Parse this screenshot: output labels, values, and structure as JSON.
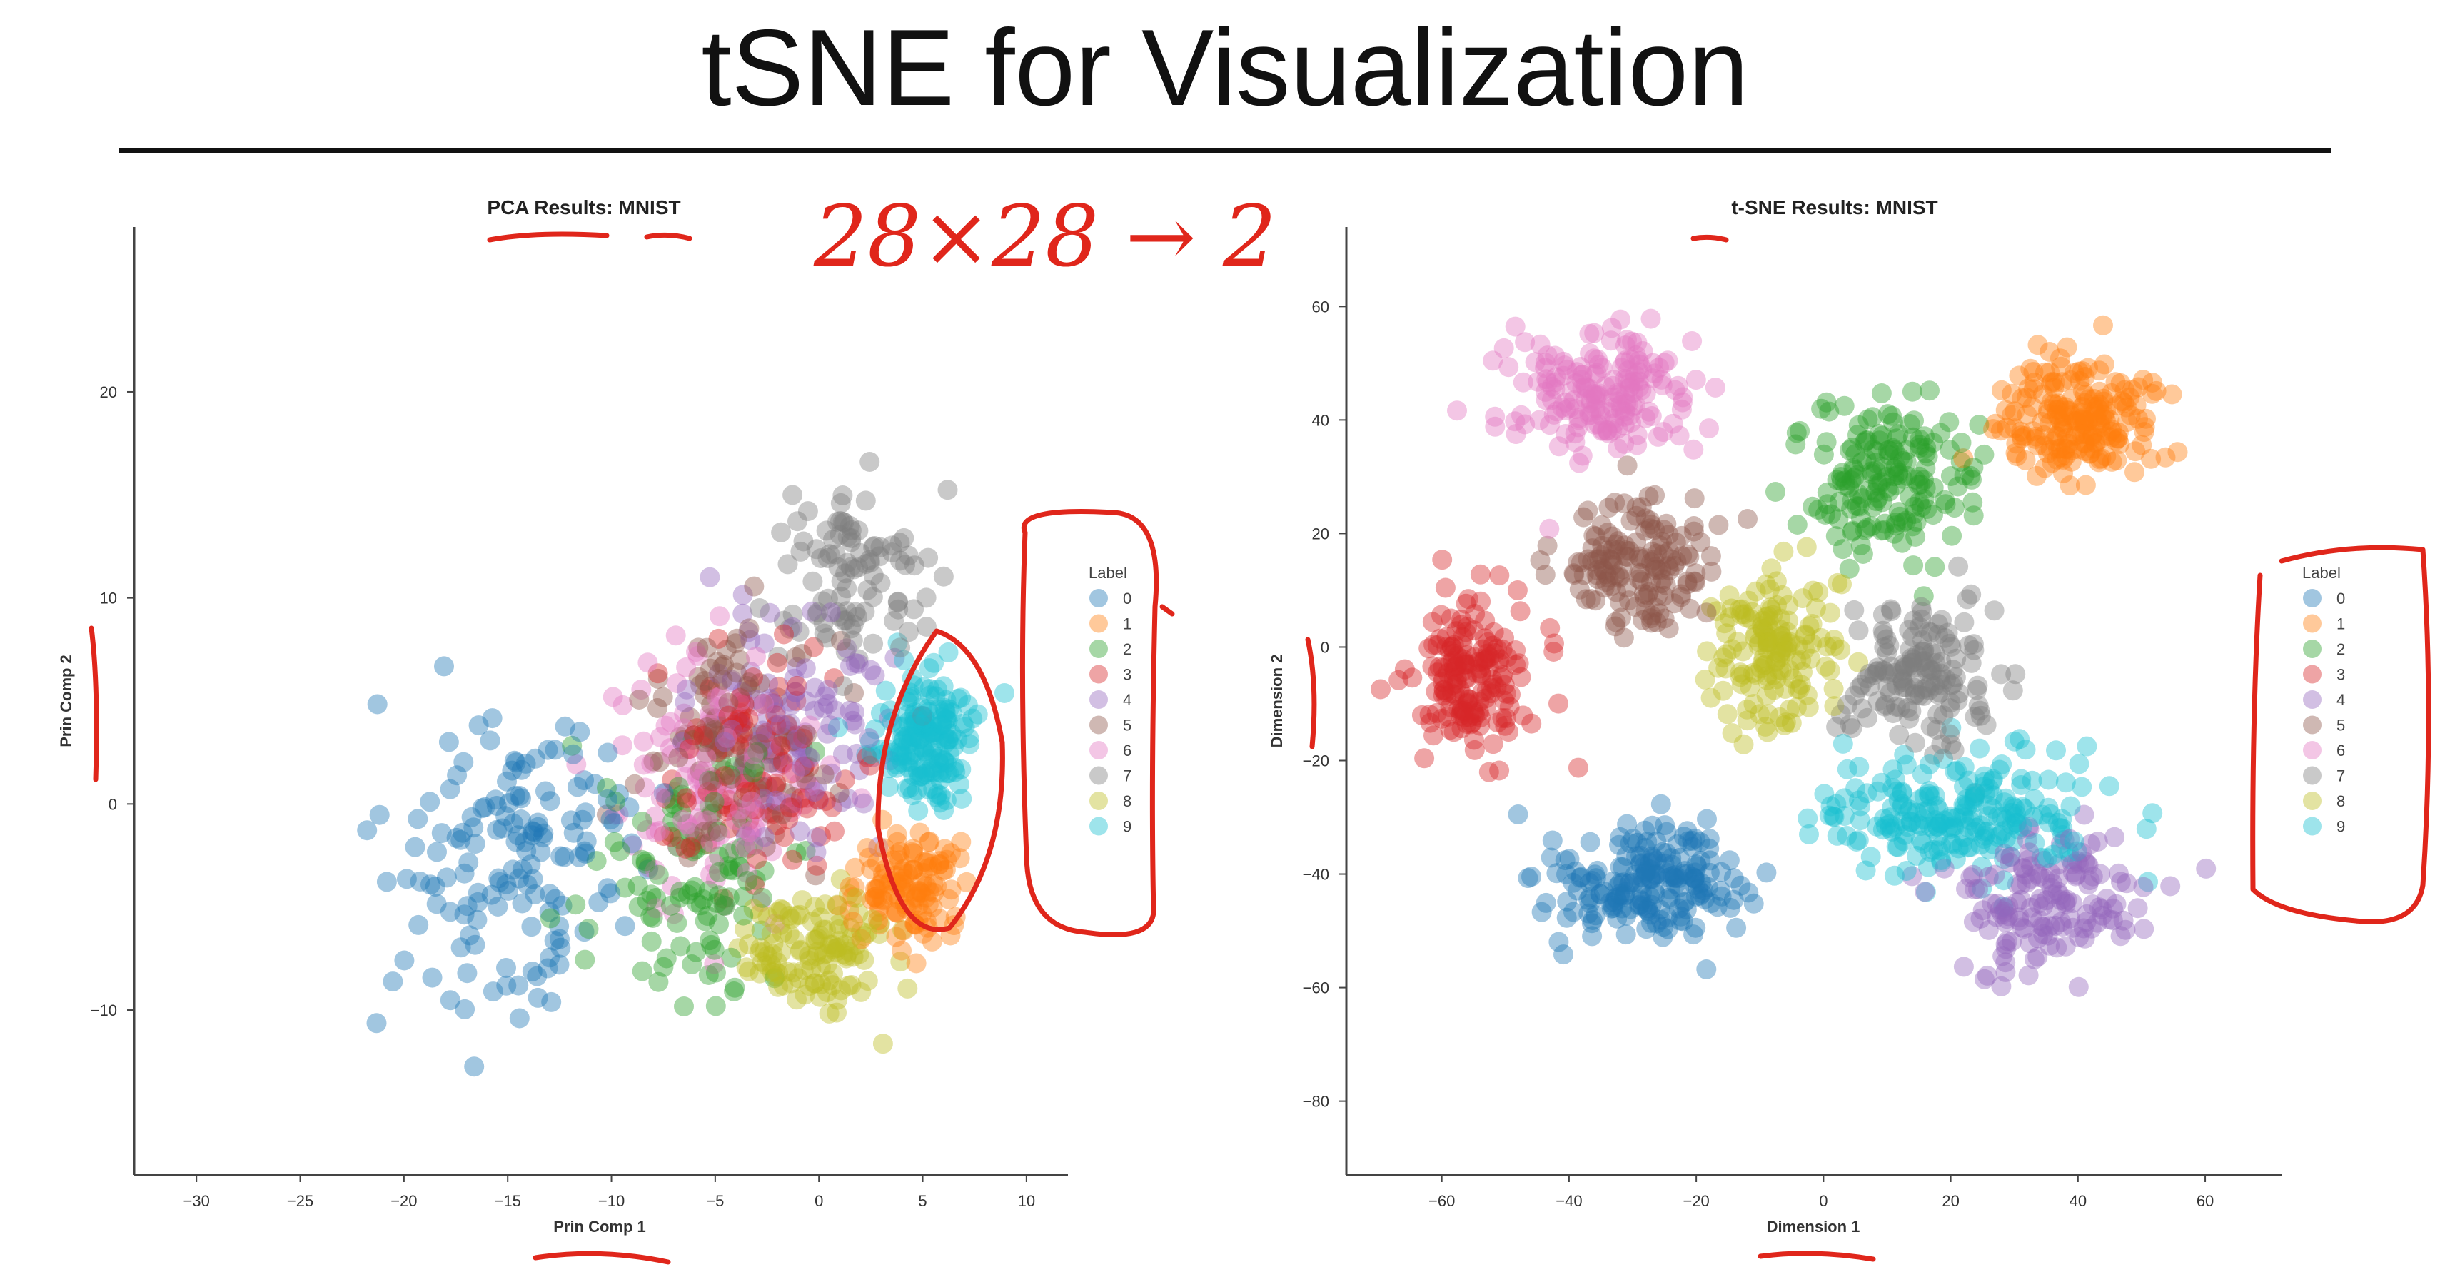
{
  "slide": {
    "title": "tSNE for Visualization"
  },
  "annotations": {
    "handwritten_note": "28×28 → 2"
  },
  "colors": {
    "palette": [
      "#1f77b4",
      "#ff7f0e",
      "#2ca02c",
      "#d62728",
      "#9467bd",
      "#8c564b",
      "#e377c2",
      "#7f7f7f",
      "#bcbd22",
      "#17becf"
    ],
    "annotation": "#e0261b"
  },
  "chart_data": [
    {
      "type": "scatter",
      "title": "PCA Results: MNIST",
      "xlabel": "Prin Comp 1",
      "ylabel": "Prin Comp 2",
      "xlim": [
        -33,
        12
      ],
      "ylim": [
        -18,
        28
      ],
      "xticks": [
        -30,
        -25,
        -20,
        -15,
        -10,
        -5,
        0,
        5,
        10
      ],
      "yticks": [
        -10,
        0,
        10,
        20
      ],
      "grid": false,
      "legend": {
        "title": "Label",
        "position": "right",
        "entries": [
          "0",
          "1",
          "2",
          "3",
          "4",
          "5",
          "6",
          "7",
          "8",
          "9"
        ]
      },
      "series": [
        {
          "name": "0",
          "center": [
            -15,
            -3
          ],
          "spread": [
            5.5,
            6.5
          ],
          "count": 150
        },
        {
          "name": "1",
          "center": [
            4,
            -4
          ],
          "spread": [
            2.5,
            2.5
          ],
          "count": 120
        },
        {
          "name": "2",
          "center": [
            -6,
            -3
          ],
          "spread": [
            4.5,
            5.5
          ],
          "count": 110
        },
        {
          "name": "3",
          "center": [
            -3,
            2
          ],
          "spread": [
            4.0,
            5.0
          ],
          "count": 110
        },
        {
          "name": "4",
          "center": [
            -1,
            4
          ],
          "spread": [
            4.5,
            5.0
          ],
          "count": 110
        },
        {
          "name": "5",
          "center": [
            -4,
            3
          ],
          "spread": [
            4.0,
            5.5
          ],
          "count": 110
        },
        {
          "name": "6",
          "center": [
            -5,
            1
          ],
          "spread": [
            5.0,
            5.5
          ],
          "count": 120
        },
        {
          "name": "7",
          "center": [
            2,
            11
          ],
          "spread": [
            3.5,
            4.5
          ],
          "count": 100
        },
        {
          "name": "8",
          "center": [
            0,
            -7
          ],
          "spread": [
            3.5,
            3.0
          ],
          "count": 120
        },
        {
          "name": "9",
          "center": [
            5,
            3
          ],
          "spread": [
            2.2,
            3.0
          ],
          "count": 170
        }
      ]
    },
    {
      "type": "scatter",
      "title": "t-SNE Results: MNIST",
      "xlabel": "Dimension 1",
      "ylabel": "Dimension 2",
      "xlim": [
        -75,
        72
      ],
      "ylim": [
        -93,
        74
      ],
      "xticks": [
        -60,
        -40,
        -20,
        0,
        20,
        40,
        60
      ],
      "yticks": [
        -80,
        -60,
        -40,
        -20,
        0,
        20,
        40,
        60
      ],
      "grid": false,
      "legend": {
        "title": "Label",
        "position": "right",
        "entries": [
          "0",
          "1",
          "2",
          "3",
          "4",
          "5",
          "6",
          "7",
          "8",
          "9"
        ]
      },
      "series": [
        {
          "name": "0",
          "center": [
            -28,
            -42
          ],
          "spread": [
            14,
            9
          ],
          "count": 200
        },
        {
          "name": "1",
          "center": [
            40,
            40
          ],
          "spread": [
            12,
            9
          ],
          "count": 200
        },
        {
          "name": "2",
          "center": [
            10,
            30
          ],
          "spread": [
            12,
            14
          ],
          "count": 170
        },
        {
          "name": "3",
          "center": [
            -55,
            -5
          ],
          "spread": [
            9,
            12
          ],
          "count": 170
        },
        {
          "name": "4",
          "center": [
            35,
            -45
          ],
          "spread": [
            14,
            10
          ],
          "count": 150
        },
        {
          "name": "5",
          "center": [
            -30,
            15
          ],
          "spread": [
            10,
            11
          ],
          "count": 150
        },
        {
          "name": "6",
          "center": [
            -35,
            45
          ],
          "spread": [
            14,
            10
          ],
          "count": 180
        },
        {
          "name": "7",
          "center": [
            15,
            -5
          ],
          "spread": [
            10,
            11
          ],
          "count": 150
        },
        {
          "name": "8",
          "center": [
            -8,
            0
          ],
          "spread": [
            9,
            12
          ],
          "count": 150
        },
        {
          "name": "9",
          "center": [
            20,
            -30
          ],
          "spread": [
            20,
            10
          ],
          "count": 220
        }
      ]
    }
  ]
}
